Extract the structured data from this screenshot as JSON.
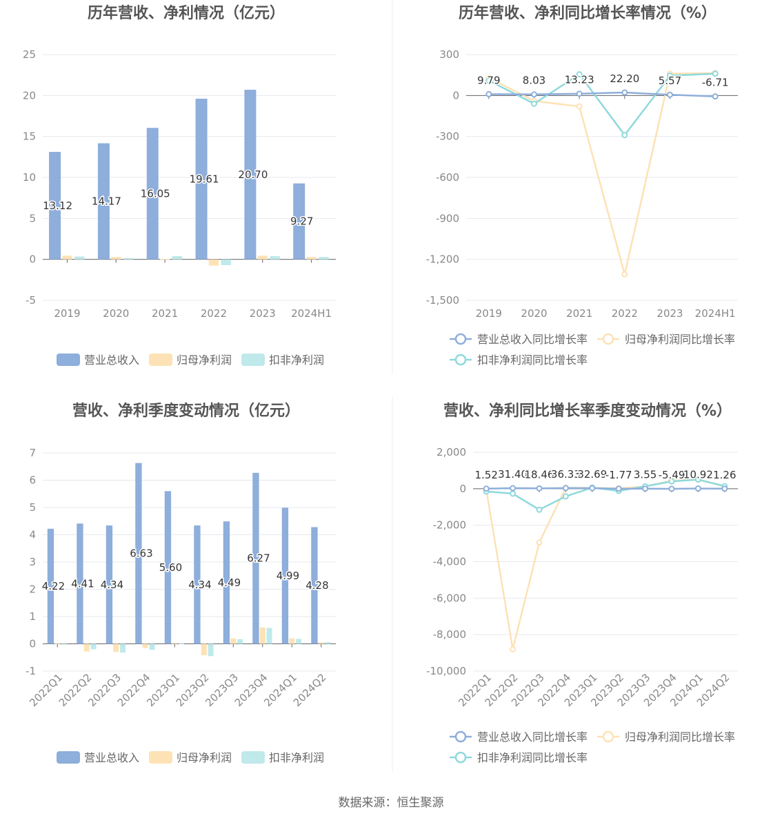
{
  "colors": {
    "revenue": "#8eaedb",
    "net_profit": "#fde2b5",
    "deducted_profit": "#8ed9dc",
    "revenue_bar": "#8eaedb",
    "net_profit_bar": "#fde2b5",
    "deducted_profit_bar": "#bfe9ea",
    "axis_text": "#888888",
    "title": "#555555",
    "grid": "#e6e8ef"
  },
  "source_label": "数据来源：恒生聚源",
  "chart_data": [
    {
      "type": "bar",
      "title": "历年营收、净利情况（亿元）",
      "categories": [
        "2019",
        "2020",
        "2021",
        "2022",
        "2023",
        "2024H1"
      ],
      "ylim": [
        -5,
        25
      ],
      "yticks": [
        -5,
        0,
        5,
        10,
        15,
        20,
        25
      ],
      "series": [
        {
          "name": "营业总收入",
          "values": [
            13.12,
            14.17,
            16.05,
            19.61,
            20.7,
            9.27
          ],
          "labels": [
            "13.12",
            "14.17",
            "16.05",
            "19.61",
            "20.70",
            "9.27"
          ]
        },
        {
          "name": "归母净利润",
          "values": [
            0.45,
            0.3,
            0.05,
            -0.75,
            0.45,
            0.3
          ]
        },
        {
          "name": "扣非净利润",
          "values": [
            0.35,
            0.15,
            0.4,
            -0.7,
            0.4,
            0.3
          ]
        }
      ],
      "legend_position": "bottom",
      "grid": true
    },
    {
      "type": "line",
      "title": "历年营收、净利同比增长率情况（%）",
      "categories": [
        "2019",
        "2020",
        "2021",
        "2022",
        "2023",
        "2024H1"
      ],
      "ylim": [
        -1500,
        300
      ],
      "yticks": [
        -1500,
        -1200,
        -900,
        -600,
        -300,
        0,
        300
      ],
      "ytick_labels": [
        "-1,500",
        "-1,200",
        "-900",
        "-600",
        "-300",
        "0",
        "300"
      ],
      "series": [
        {
          "name": "营业总收入同比增长率",
          "values": [
            9.79,
            8.03,
            13.23,
            22.2,
            5.57,
            -6.71
          ],
          "labels": [
            "9.79",
            "8.03",
            "13.23",
            "22.20",
            "5.57",
            "-6.71"
          ]
        },
        {
          "name": "归母净利润同比增长率",
          "values": [
            130,
            -40,
            -80,
            -1310,
            160,
            165
          ]
        },
        {
          "name": "扣非净利润同比增长率",
          "values": [
            110,
            -60,
            155,
            -290,
            145,
            160
          ]
        }
      ],
      "legend_position": "bottom",
      "grid": true
    },
    {
      "type": "bar",
      "title": "营收、净利季度变动情况（亿元）",
      "categories": [
        "2022Q1",
        "2022Q2",
        "2022Q3",
        "2022Q4",
        "2023Q1",
        "2023Q2",
        "2023Q3",
        "2023Q4",
        "2024Q1",
        "2024Q2"
      ],
      "ylim": [
        -1,
        7
      ],
      "yticks": [
        -1,
        0,
        1,
        2,
        3,
        4,
        5,
        6,
        7
      ],
      "series": [
        {
          "name": "营业总收入",
          "values": [
            4.22,
            4.41,
            4.34,
            6.63,
            5.6,
            4.34,
            4.49,
            6.27,
            4.99,
            4.28
          ],
          "labels": [
            "4.22",
            "4.41",
            "4.34",
            "6.63",
            "5.60",
            "4.34",
            "4.49",
            "6.27",
            "4.99",
            "4.28"
          ]
        },
        {
          "name": "归母净利润",
          "values": [
            0.02,
            -0.28,
            -0.3,
            -0.15,
            0.03,
            -0.42,
            0.2,
            0.6,
            0.2,
            0.05
          ]
        },
        {
          "name": "扣非净利润",
          "values": [
            0.0,
            -0.2,
            -0.32,
            -0.22,
            0.02,
            -0.45,
            0.17,
            0.58,
            0.18,
            0.06
          ]
        }
      ],
      "legend_position": "bottom",
      "grid": true
    },
    {
      "type": "line",
      "title": "营收、净利同比增长率季度变动情况（%）",
      "categories": [
        "2022Q1",
        "2022Q2",
        "2022Q3",
        "2022Q4",
        "2023Q1",
        "2023Q2",
        "2023Q3",
        "2023Q4",
        "2024Q1",
        "2024Q2"
      ],
      "ylim": [
        -10000,
        2000
      ],
      "yticks": [
        -10000,
        -8000,
        -6000,
        -4000,
        -2000,
        0,
        2000
      ],
      "ytick_labels": [
        "-10,000",
        "-8,000",
        "-6,000",
        "-4,000",
        "-2,000",
        "0",
        "2,000"
      ],
      "series": [
        {
          "name": "营业总收入同比增长率",
          "values": [
            1.52,
            31.4,
            18.46,
            36.33,
            32.69,
            -1.77,
            3.55,
            -5.49,
            10.92,
            1.26
          ],
          "labels": [
            "1.52",
            "31.40",
            "18.46",
            "36.33",
            "32.69",
            "-1.77",
            "3.55",
            "-5.49",
            "10.92",
            "1.26"
          ]
        },
        {
          "name": "归母净利润同比增长率",
          "values": [
            -50,
            -8800,
            -2950,
            50,
            40,
            20,
            120,
            450,
            500,
            130
          ]
        },
        {
          "name": "扣非净利润同比增长率",
          "values": [
            -150,
            -270,
            -1150,
            -420,
            60,
            -120,
            130,
            400,
            500,
            140
          ]
        }
      ],
      "legend_position": "bottom",
      "grid": true
    }
  ]
}
